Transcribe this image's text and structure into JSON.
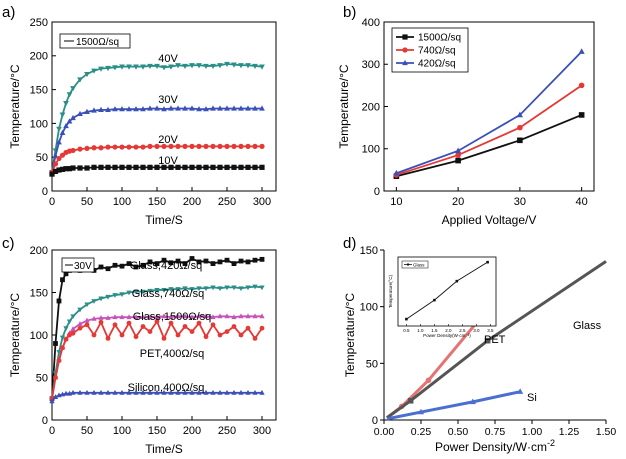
{
  "chart_data": [
    {
      "type": "line",
      "panel_label": "a)",
      "xlabel": "Time/S",
      "ylabel": "Temperature/°C",
      "xlim": [
        0,
        320
      ],
      "ylim": [
        0,
        250
      ],
      "xticks": [
        0,
        50,
        100,
        150,
        200,
        250,
        300
      ],
      "yticks": [
        0,
        50,
        100,
        150,
        200,
        250
      ],
      "legend": {
        "position": "top-left",
        "entries": [
          "1500Ω/sq"
        ]
      },
      "series": [
        {
          "name": "40V",
          "color": "#2a8f88",
          "marker": "triangle-down",
          "x": [
            0,
            5,
            10,
            15,
            20,
            25,
            30,
            40,
            50,
            60,
            70,
            80,
            90,
            100,
            110,
            120,
            130,
            140,
            150,
            160,
            170,
            180,
            190,
            200,
            210,
            220,
            230,
            240,
            250,
            260,
            270,
            280,
            290,
            300
          ],
          "y": [
            28,
            60,
            92,
            113,
            130,
            143,
            152,
            165,
            173,
            178,
            181,
            182,
            183,
            184,
            184,
            184,
            184,
            185,
            185,
            183,
            184,
            186,
            185,
            186,
            186,
            185,
            185,
            186,
            188,
            187,
            186,
            186,
            185,
            184
          ]
        },
        {
          "name": "30V",
          "color": "#3a4fb8",
          "marker": "triangle",
          "x": [
            0,
            5,
            10,
            15,
            20,
            25,
            30,
            40,
            50,
            60,
            70,
            80,
            90,
            100,
            110,
            120,
            130,
            140,
            150,
            160,
            170,
            180,
            190,
            200,
            210,
            220,
            230,
            240,
            250,
            260,
            270,
            280,
            290,
            300
          ],
          "y": [
            28,
            52,
            72,
            86,
            96,
            103,
            108,
            114,
            117,
            119,
            120,
            120,
            121,
            121,
            121,
            121,
            121,
            122,
            122,
            121,
            122,
            122,
            122,
            122,
            121,
            121,
            122,
            122,
            122,
            122,
            122,
            122,
            122,
            122
          ]
        },
        {
          "name": "20V",
          "color": "#e53935",
          "marker": "circle",
          "x": [
            0,
            5,
            10,
            15,
            20,
            25,
            30,
            40,
            50,
            60,
            70,
            80,
            90,
            100,
            110,
            120,
            130,
            140,
            150,
            160,
            170,
            180,
            190,
            200,
            210,
            220,
            230,
            240,
            250,
            260,
            270,
            280,
            290,
            300
          ],
          "y": [
            28,
            40,
            48,
            53,
            57,
            59,
            60,
            62,
            63,
            64,
            64,
            65,
            65,
            65,
            65,
            65,
            65,
            66,
            66,
            66,
            66,
            66,
            66,
            66,
            66,
            66,
            66,
            66,
            66,
            66,
            66,
            66,
            66,
            66
          ]
        },
        {
          "name": "10V",
          "color": "#111111",
          "marker": "square",
          "x": [
            0,
            5,
            10,
            15,
            20,
            25,
            30,
            40,
            50,
            60,
            70,
            80,
            90,
            100,
            110,
            120,
            130,
            140,
            150,
            160,
            170,
            180,
            190,
            200,
            210,
            220,
            230,
            240,
            250,
            260,
            270,
            280,
            290,
            300
          ],
          "y": [
            25,
            29,
            31,
            32,
            33,
            33,
            34,
            34,
            34,
            35,
            35,
            35,
            35,
            35,
            35,
            35,
            35,
            35,
            35,
            35,
            35,
            35,
            35,
            35,
            35,
            35,
            35,
            35,
            35,
            35,
            35,
            35,
            35,
            35
          ]
        }
      ]
    },
    {
      "type": "line",
      "panel_label": "b)",
      "xlabel": "Applied Voltage/V",
      "ylabel": "Temperature/°C",
      "xlim": [
        8,
        42
      ],
      "ylim": [
        0,
        400
      ],
      "xticks": [
        10,
        20,
        30,
        40
      ],
      "yticks": [
        0,
        100,
        200,
        300,
        400
      ],
      "legend": {
        "position": "top-left"
      },
      "categories": [
        10,
        20,
        30,
        40
      ],
      "series": [
        {
          "name": "1500Ω/sq",
          "color": "#111111",
          "marker": "square",
          "values": [
            35,
            72,
            120,
            180
          ]
        },
        {
          "name": "740Ω/sq",
          "color": "#e53935",
          "marker": "circle",
          "values": [
            38,
            85,
            150,
            250
          ]
        },
        {
          "name": "420Ω/sq",
          "color": "#3a4fb8",
          "marker": "triangle",
          "values": [
            42,
            95,
            180,
            330
          ]
        }
      ]
    },
    {
      "type": "line",
      "panel_label": "c)",
      "xlabel": "Time/S",
      "ylabel": "Temperature/°C",
      "xlim": [
        0,
        320
      ],
      "ylim": [
        0,
        200
      ],
      "xticks": [
        0,
        50,
        100,
        150,
        200,
        250,
        300
      ],
      "yticks": [
        0,
        50,
        100,
        150,
        200
      ],
      "legend": {
        "position": "top-left",
        "entries": [
          "30V"
        ]
      },
      "series": [
        {
          "name": "Glass,420Ω/sq",
          "color": "#111111",
          "marker": "square",
          "x": [
            0,
            5,
            10,
            15,
            20,
            25,
            30,
            40,
            50,
            60,
            70,
            80,
            90,
            100,
            110,
            120,
            130,
            140,
            150,
            160,
            170,
            180,
            190,
            200,
            210,
            220,
            230,
            240,
            250,
            260,
            270,
            280,
            290,
            300
          ],
          "y": [
            25,
            90,
            140,
            165,
            172,
            176,
            177,
            176,
            178,
            176,
            180,
            178,
            182,
            181,
            184,
            180,
            182,
            186,
            184,
            188,
            185,
            187,
            184,
            190,
            186,
            187,
            184,
            186,
            188,
            184,
            187,
            186,
            188,
            189
          ]
        },
        {
          "name": "Glass,740Ω/sq",
          "color": "#2a8f88",
          "marker": "triangle-down",
          "x": [
            0,
            5,
            10,
            15,
            20,
            25,
            30,
            40,
            50,
            60,
            70,
            80,
            90,
            100,
            110,
            120,
            130,
            140,
            150,
            160,
            170,
            180,
            190,
            200,
            210,
            220,
            230,
            240,
            250,
            260,
            270,
            280,
            290,
            300
          ],
          "y": [
            25,
            55,
            80,
            97,
            108,
            116,
            122,
            130,
            136,
            140,
            143,
            145,
            147,
            148,
            150,
            151,
            151,
            152,
            153,
            153,
            154,
            154,
            155,
            154,
            155,
            155,
            156,
            155,
            156,
            156,
            155,
            156,
            157,
            156
          ]
        },
        {
          "name": "Glass,1500Ω/sq",
          "color": "#c653b8",
          "marker": "triangle",
          "x": [
            0,
            5,
            10,
            15,
            20,
            25,
            30,
            40,
            50,
            60,
            70,
            80,
            90,
            100,
            110,
            120,
            130,
            140,
            150,
            160,
            170,
            180,
            190,
            200,
            210,
            220,
            230,
            240,
            250,
            260,
            270,
            280,
            290,
            300
          ],
          "y": [
            25,
            50,
            70,
            85,
            95,
            102,
            107,
            113,
            117,
            119,
            120,
            120,
            121,
            121,
            121,
            121,
            121,
            121,
            121,
            122,
            121,
            122,
            122,
            121,
            122,
            122,
            121,
            122,
            122,
            121,
            122,
            122,
            122,
            122
          ]
        },
        {
          "name": "PET,400Ω/sq",
          "color": "#e53935",
          "marker": "circle",
          "x": [
            0,
            5,
            10,
            15,
            20,
            25,
            30,
            40,
            50,
            60,
            70,
            80,
            90,
            100,
            110,
            120,
            130,
            140,
            150,
            160,
            170,
            180,
            190,
            200,
            210,
            220,
            230,
            240,
            250,
            260,
            270,
            280,
            290,
            300
          ],
          "y": [
            25,
            50,
            70,
            85,
            95,
            100,
            102,
            108,
            112,
            100,
            115,
            96,
            112,
            100,
            114,
            98,
            110,
            104,
            116,
            96,
            114,
            100,
            110,
            104,
            114,
            98,
            112,
            100,
            104,
            110,
            100,
            108,
            96,
            108
          ]
        },
        {
          "name": "Silicon,400Ω/sq",
          "color": "#3a4fb8",
          "marker": "triangle",
          "x": [
            0,
            5,
            10,
            15,
            20,
            25,
            30,
            40,
            50,
            60,
            70,
            80,
            90,
            100,
            110,
            120,
            130,
            140,
            150,
            160,
            170,
            180,
            190,
            200,
            210,
            220,
            230,
            240,
            250,
            260,
            270,
            280,
            290,
            300
          ],
          "y": [
            22,
            27,
            29,
            30,
            31,
            31,
            32,
            32,
            32,
            32,
            32,
            32,
            32,
            32,
            32,
            32,
            32,
            32,
            32,
            32,
            32,
            32,
            32,
            32,
            32,
            32,
            32,
            32,
            32,
            32,
            32,
            32,
            32,
            32
          ]
        }
      ]
    },
    {
      "type": "line",
      "panel_label": "d)",
      "xlabel": "Power Density/W·cm",
      "xlabel_sup": "-2",
      "ylabel": "Temperature/°C",
      "xlim": [
        0,
        1.5
      ],
      "ylim": [
        0,
        150
      ],
      "xticks": [
        "0.00",
        "0.25",
        "0.50",
        "0.75",
        "1.00",
        "1.25",
        "1.50"
      ],
      "xtick_values": [
        0,
        0.25,
        0.5,
        0.75,
        1.0,
        1.25,
        1.5
      ],
      "yticks": [
        0,
        50,
        100,
        150
      ],
      "series": [
        {
          "name": "PET",
          "color": "#e57373",
          "marker": "circle",
          "x": [
            0.02,
            0.12,
            0.3,
            0.62
          ],
          "y": [
            2,
            12,
            35,
            85
          ]
        },
        {
          "name": "Glass",
          "color": "#555555",
          "marker": "square",
          "x": [
            0.02,
            0.18,
            0.7,
            1.5
          ],
          "y": [
            2,
            17,
            70,
            140
          ]
        },
        {
          "name": "Si",
          "color": "#4a6fd0",
          "marker": "triangle",
          "x": [
            0.02,
            0.25,
            0.6,
            0.92
          ],
          "y": [
            1,
            7,
            16,
            25
          ]
        }
      ],
      "inset": {
        "type": "line",
        "xlabel": "Power Density(W·cm⁻²)",
        "ylabel": "Temperature(°C)",
        "xlim": [
          0.2,
          3.7
        ],
        "ylim": [
          20,
          220
        ],
        "xticks": [
          "0.5",
          "1.0",
          "1.5",
          "2.0",
          "2.5",
          "3.0",
          "3.5"
        ],
        "xtick_values": [
          0.5,
          1.0,
          1.5,
          2.0,
          2.5,
          3.0,
          3.5
        ],
        "yticks": [],
        "legend": {
          "position": "top-left",
          "entries": [
            "Glass"
          ]
        },
        "series": [
          {
            "name": "Glass",
            "color": "#111111",
            "marker": "square",
            "x": [
              0.5,
              1.5,
              2.3,
              3.4
            ],
            "y": [
              40,
              95,
              150,
              205
            ]
          }
        ]
      }
    }
  ]
}
